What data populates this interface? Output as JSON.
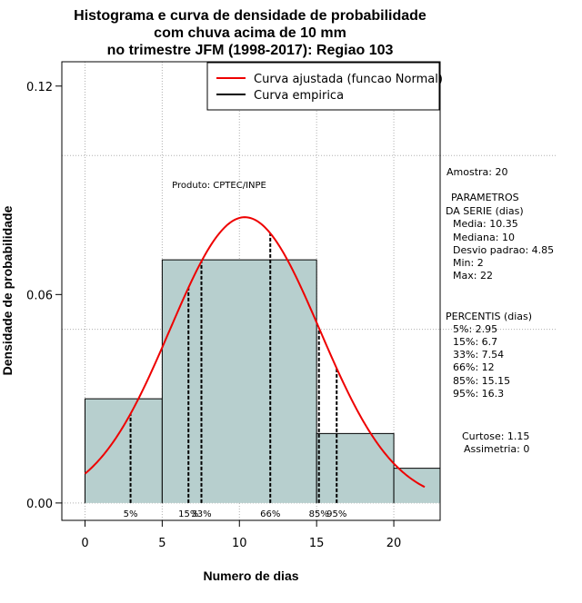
{
  "chart_data": {
    "type": "histogram",
    "title_lines": [
      "Histograma e curva de densidade de probabilidade",
      "com chuva acima de 10 mm",
      "no trimestre JFM (1998-2017): Regiao 103"
    ],
    "xlabel": "Numero de dias",
    "ylabel": "Densidade de probabilidade",
    "xlim": [
      -1.5,
      23
    ],
    "ylim": [
      -0.005,
      0.127
    ],
    "x_ticks": [
      0,
      5,
      10,
      15,
      20
    ],
    "y_ticks": [
      0.0,
      0.06,
      0.12
    ],
    "y_tick_labels": [
      "0.00",
      "0.06",
      "0.12"
    ],
    "grid_y": [
      0.0,
      0.05,
      0.1
    ],
    "grid_x": [
      0,
      5,
      10,
      15,
      20
    ],
    "bins": [
      {
        "start": 0,
        "end": 5,
        "density": 0.03
      },
      {
        "start": 5,
        "end": 15,
        "density": 0.07
      },
      {
        "start": 15,
        "end": 20,
        "density": 0.02
      },
      {
        "start": 20,
        "end": 25,
        "density": 0.01
      }
    ],
    "normal_fit": {
      "mean": 10.35,
      "sd": 4.85,
      "x_from": 0,
      "x_to": 22
    },
    "percentile_lines": [
      {
        "label": "5%",
        "value": 2.95
      },
      {
        "label": "15%",
        "value": 6.7
      },
      {
        "label": "33%",
        "value": 7.54
      },
      {
        "label": "66%",
        "value": 12
      },
      {
        "label": "85%",
        "value": 15.15
      },
      {
        "label": "95%",
        "value": 16.3
      }
    ],
    "legend": {
      "position": "top-right",
      "entries": [
        {
          "label": "Curva ajustada (funcao Normal)",
          "color": "#ee0000"
        },
        {
          "label": "Curva empirica",
          "color": "#000000"
        }
      ]
    },
    "annotation": "Produto: CPTEC/INPE",
    "colors": {
      "bar_fill": "#b7cfce",
      "curve": "#ee0000",
      "grid": "#b0b0b0"
    }
  },
  "side_panel": {
    "amostra": "Amostra: 20",
    "parametros_header_1": "PARAMETROS",
    "parametros_header_2": "DA SERIE (dias)",
    "media": "Media: 10.35",
    "mediana": "Mediana: 10",
    "desvio": "Desvio padrao: 4.85",
    "min": "Min: 2",
    "max": "Max: 22",
    "percentis_header": "PERCENTIS (dias)",
    "p5": "5%: 2.95",
    "p15": "15%: 6.7",
    "p33": "33%: 7.54",
    "p66": "66%: 12",
    "p85": "85%: 15.15",
    "p95": "95%: 16.3",
    "curtose": "Curtose: 1.15",
    "assimetria": "Assimetria: 0"
  }
}
